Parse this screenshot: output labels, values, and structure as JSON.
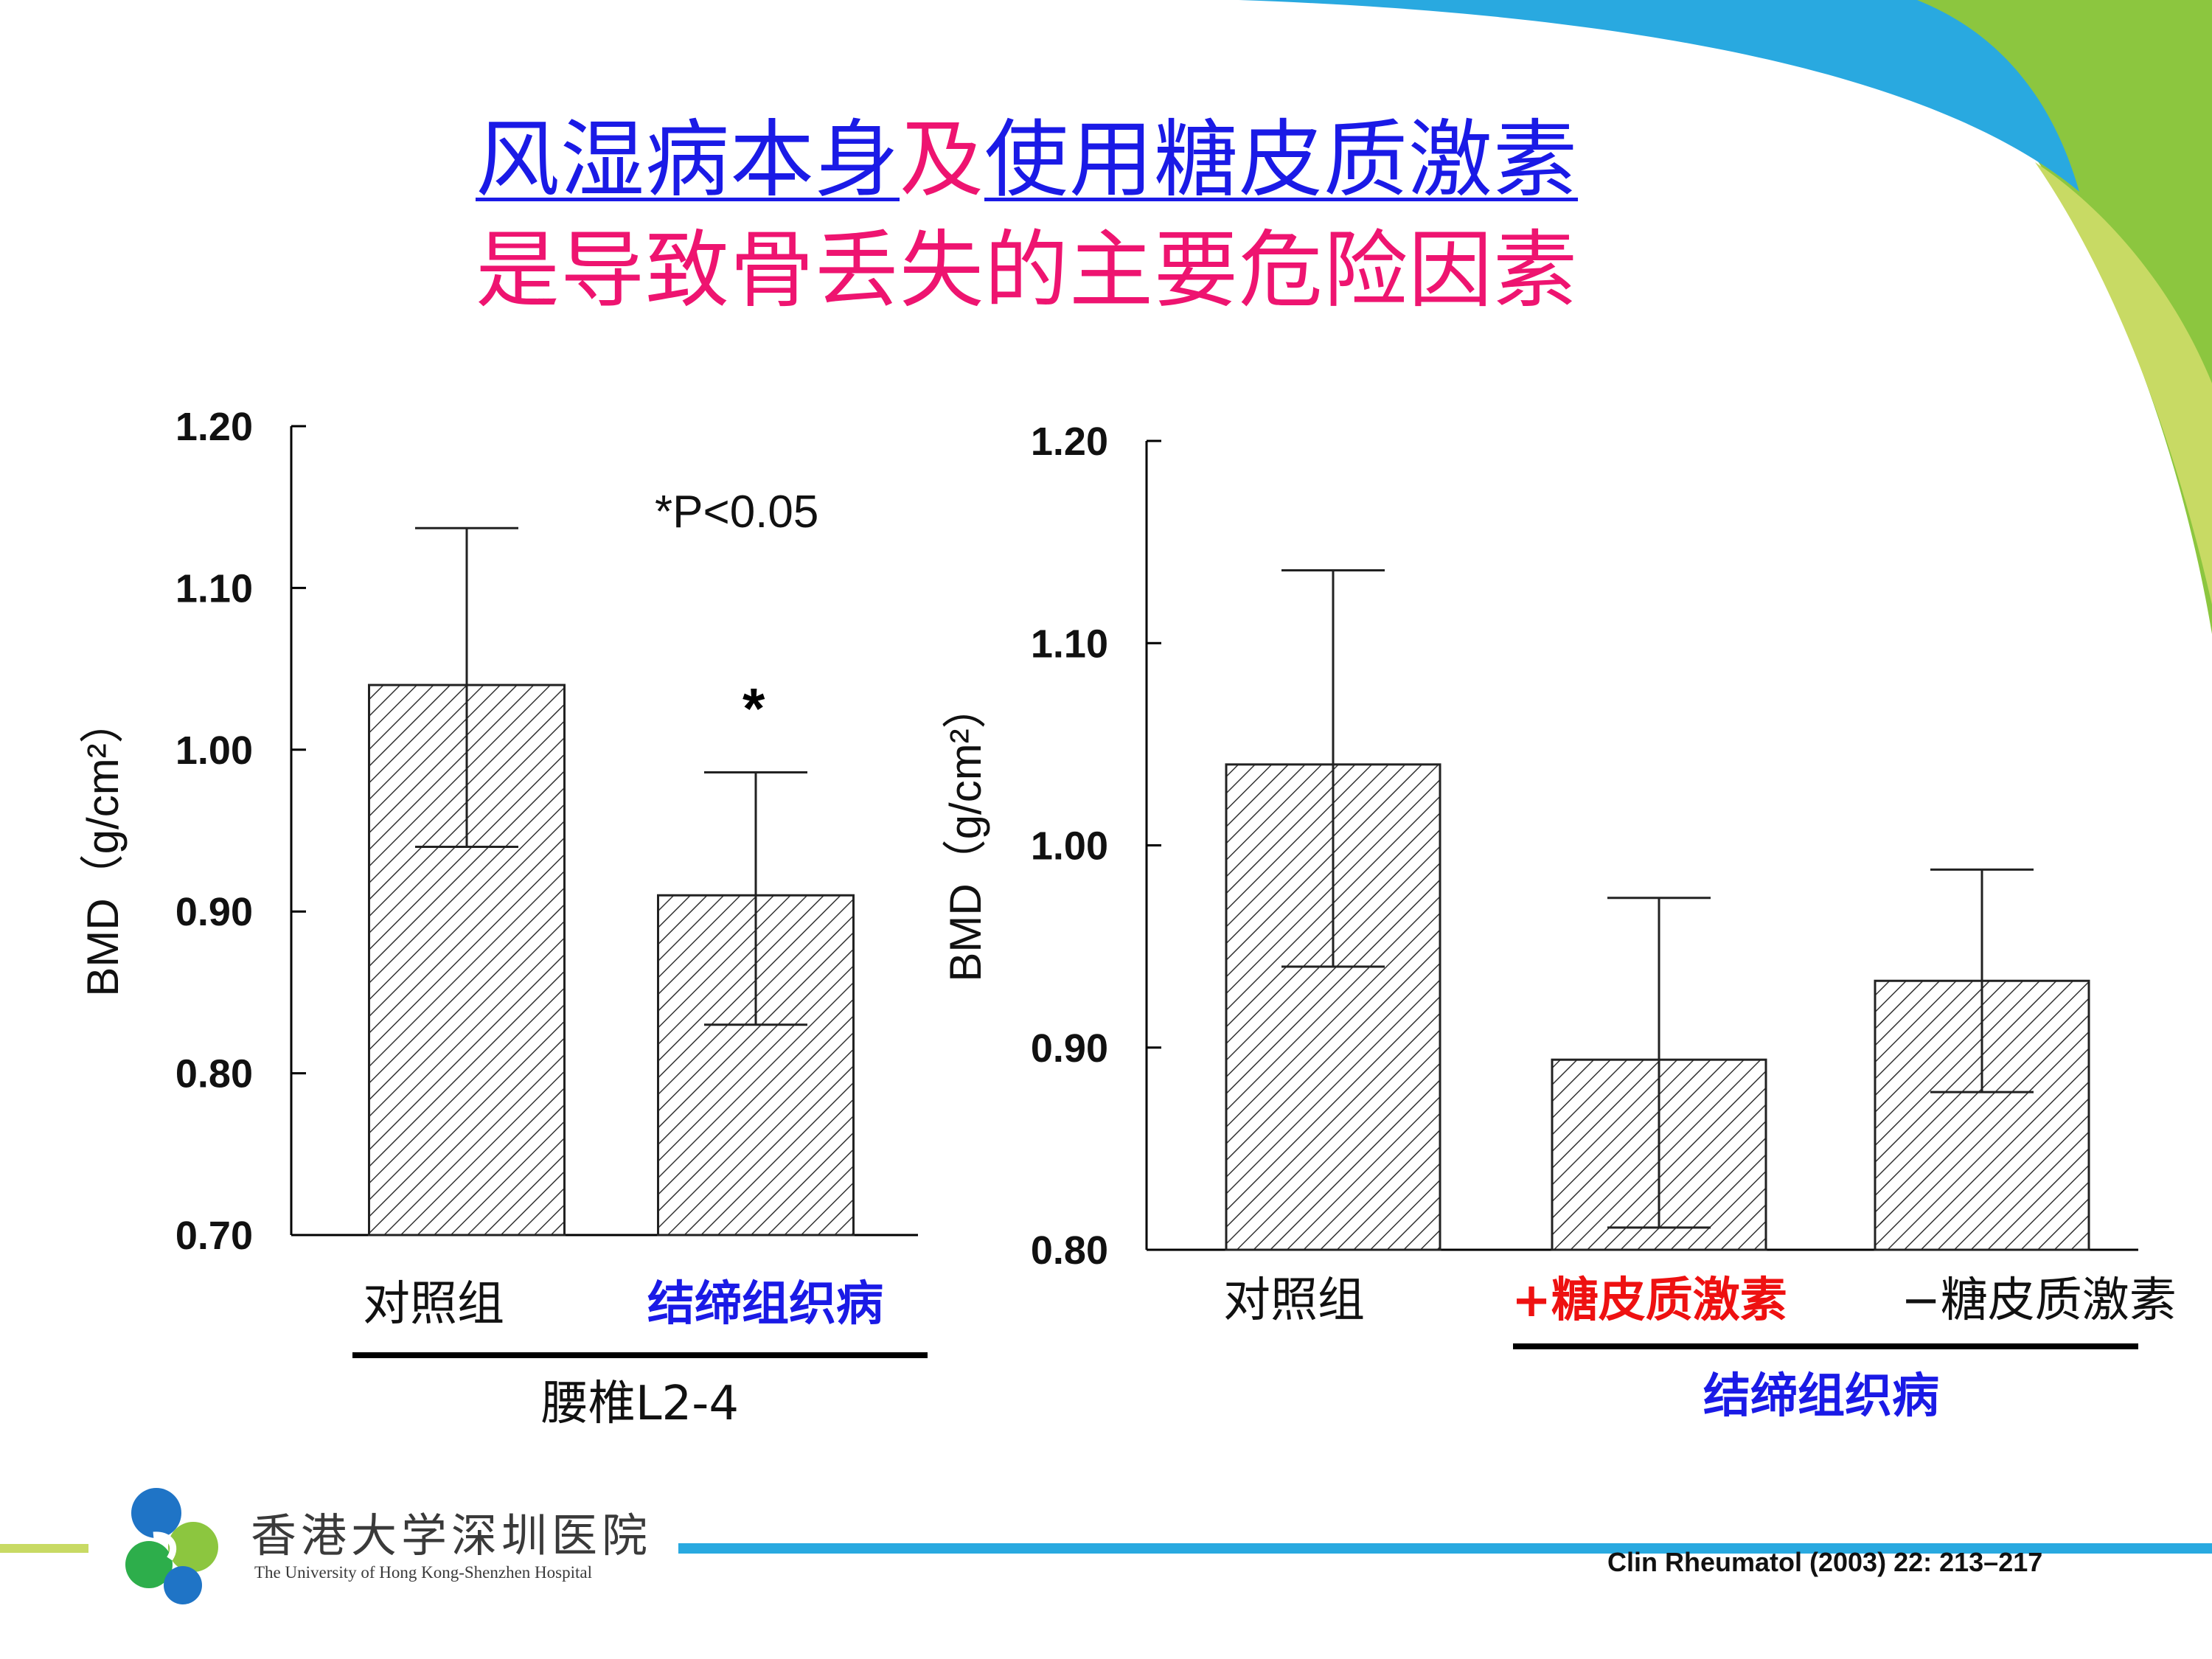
{
  "title": {
    "line1_part1": "风湿病本身",
    "line1_connector": "及",
    "line1_part2": "使用糖皮质激素",
    "line2": "是导致骨丢失的主要危险因素"
  },
  "colors": {
    "title_blue": "#1a1ae6",
    "title_pink": "#ee1470",
    "accent_blue": "#29a9e0",
    "accent_green": "#8cc63f",
    "accent_lime": "#c8da64",
    "highlight_red": "#ee1111"
  },
  "chart_data": [
    {
      "type": "bar",
      "categories": [
        "对照组",
        "结缔组织病"
      ],
      "values": [
        1.04,
        0.91
      ],
      "error_upper": [
        1.137,
        0.986
      ],
      "error_lower": [
        0.94,
        0.83
      ],
      "significance_marks": [
        "",
        "*"
      ],
      "ylabel": "BMD（g/cm²）",
      "yticks": [
        "0.70",
        "0.80",
        "0.90",
        "1.00",
        "1.10",
        "1.20"
      ],
      "ylim": [
        0.7,
        1.2
      ],
      "annotation": "*P<0.05",
      "group_label": "腰椎L2-4",
      "pattern": "diagonal hatch"
    },
    {
      "type": "bar",
      "categories": [
        "对照组",
        "+糖皮质激素",
        "−糖皮质激素"
      ],
      "values": [
        1.04,
        0.894,
        0.933
      ],
      "error_upper": [
        1.136,
        0.974,
        0.988
      ],
      "error_lower": [
        0.94,
        0.811,
        0.878
      ],
      "ylabel": "BMD（g/cm²）",
      "yticks": [
        "0.80",
        "0.90",
        "1.00",
        "1.10",
        "1.20"
      ],
      "ylim": [
        0.8,
        1.2
      ],
      "group_label": "结缔组织病",
      "pattern": "diagonal hatch"
    }
  ],
  "footer": {
    "hospital_cn": "香港大学深圳医院",
    "hospital_en": "The University of Hong Kong-Shenzhen Hospital",
    "citation": "Clin Rheumatol (2003) 22: 213–217"
  }
}
